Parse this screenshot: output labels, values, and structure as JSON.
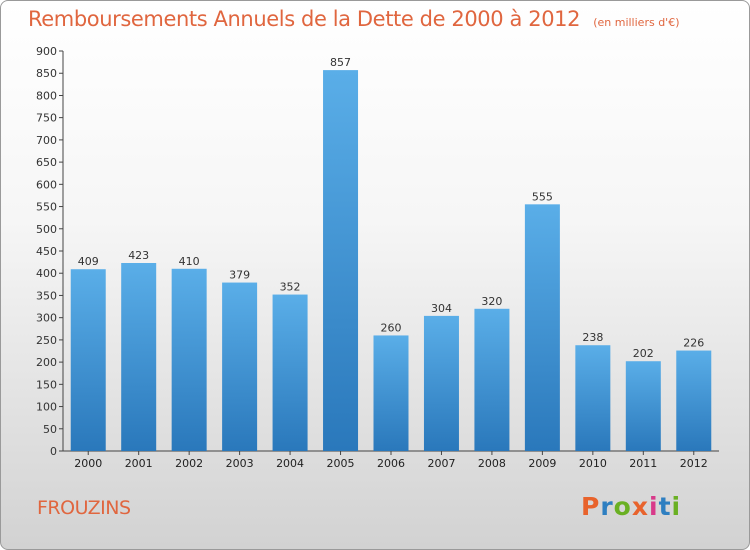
{
  "header": {
    "title": "Remboursements Annuels de la Dette de 2000 à 2012",
    "unit": "(en milliers d'€)"
  },
  "footer": {
    "commune": "FROUZINS",
    "logo_text": "Proxiti",
    "logo_colors": [
      "#e8632c",
      "#2e7fc1",
      "#6ab023",
      "#e8632c",
      "#d83a8a",
      "#2e7fc1",
      "#6ab023"
    ]
  },
  "colors": {
    "title": "#e0663f",
    "bar_light": "#5aaee8",
    "bar_dark": "#2a78bb"
  },
  "chart_data": {
    "type": "bar",
    "title": "Remboursements Annuels de la Dette de 2000 à 2012",
    "xlabel": "",
    "ylabel": "",
    "categories": [
      "2000",
      "2001",
      "2002",
      "2003",
      "2004",
      "2005",
      "2006",
      "2007",
      "2008",
      "2009",
      "2010",
      "2011",
      "2012"
    ],
    "values": [
      409,
      423,
      410,
      379,
      352,
      857,
      260,
      304,
      320,
      555,
      238,
      202,
      226
    ],
    "ylim": [
      0,
      900
    ],
    "ytick_step": 50,
    "grid": false,
    "legend": "none"
  }
}
